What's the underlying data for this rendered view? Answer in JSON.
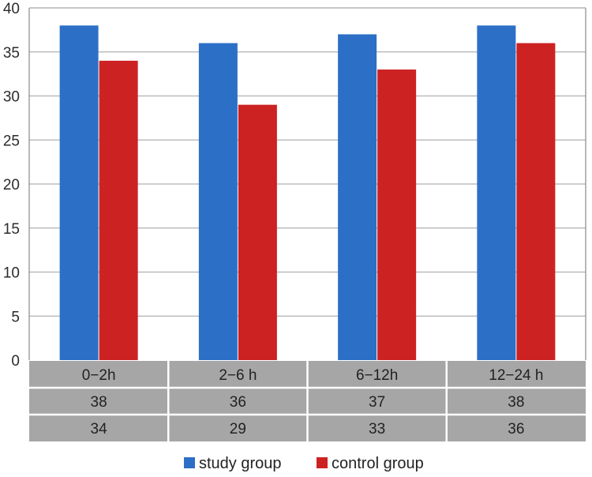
{
  "chart_data": {
    "type": "bar",
    "categories": [
      "0−2h",
      "2−6 h",
      "6−12h",
      "12−24 h"
    ],
    "series": [
      {
        "name": "study group",
        "values": [
          38,
          36,
          37,
          38
        ],
        "color": "#2c6fc7"
      },
      {
        "name": "control group",
        "values": [
          34,
          29,
          33,
          36
        ],
        "color": "#cc2222"
      }
    ],
    "ylim": [
      0,
      40
    ],
    "yticks": [
      0,
      5,
      10,
      15,
      20,
      25,
      30,
      35,
      40
    ],
    "grid": true,
    "table_rows": [
      [
        "38",
        "36",
        "37",
        "38"
      ],
      [
        "34",
        "29",
        "33",
        "36"
      ]
    ],
    "legend_placement": "bottom",
    "title": "",
    "xlabel": "",
    "ylabel": "",
    "colors": {
      "grid": "#b0b0b0",
      "axis": "#888888",
      "table_bg": "#a6a6a6",
      "table_line": "#ffffff"
    }
  }
}
